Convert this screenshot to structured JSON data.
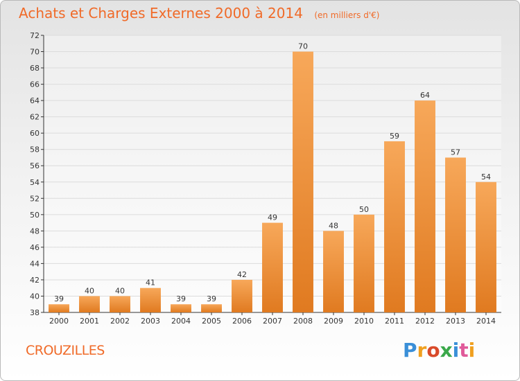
{
  "header": {
    "title": "Achats et Charges Externes 2000 à 2014",
    "subtitle": "(en milliers d'€)"
  },
  "footer": {
    "commune": "CROUZILLES",
    "logo_letters": [
      "P",
      "r",
      "o",
      "x",
      "i",
      "t",
      "i"
    ],
    "logo_colors": [
      "#3a8fd8",
      "#f0a020",
      "#d94a2a",
      "#3aa84a",
      "#3a8fd8",
      "#e05a9a",
      "#f0a020"
    ]
  },
  "colors": {
    "bar_light": "#f7a85a",
    "bar_dark": "#e07a20",
    "grid": "#dcdcdc",
    "axis": "#333333",
    "title": "#f06a28"
  },
  "chart_data": {
    "type": "bar",
    "categories": [
      "2000",
      "2001",
      "2002",
      "2003",
      "2004",
      "2005",
      "2006",
      "2007",
      "2008",
      "2009",
      "2010",
      "2011",
      "2012",
      "2013",
      "2014"
    ],
    "values": [
      39,
      40,
      40,
      41,
      39,
      39,
      42,
      49,
      70,
      48,
      50,
      59,
      64,
      57,
      54
    ],
    "ylim": [
      38,
      72
    ],
    "yticks": [
      38,
      40,
      42,
      44,
      46,
      48,
      50,
      52,
      54,
      56,
      58,
      60,
      62,
      64,
      66,
      68,
      70,
      72
    ],
    "grid": true,
    "xlabel": "",
    "ylabel": ""
  }
}
